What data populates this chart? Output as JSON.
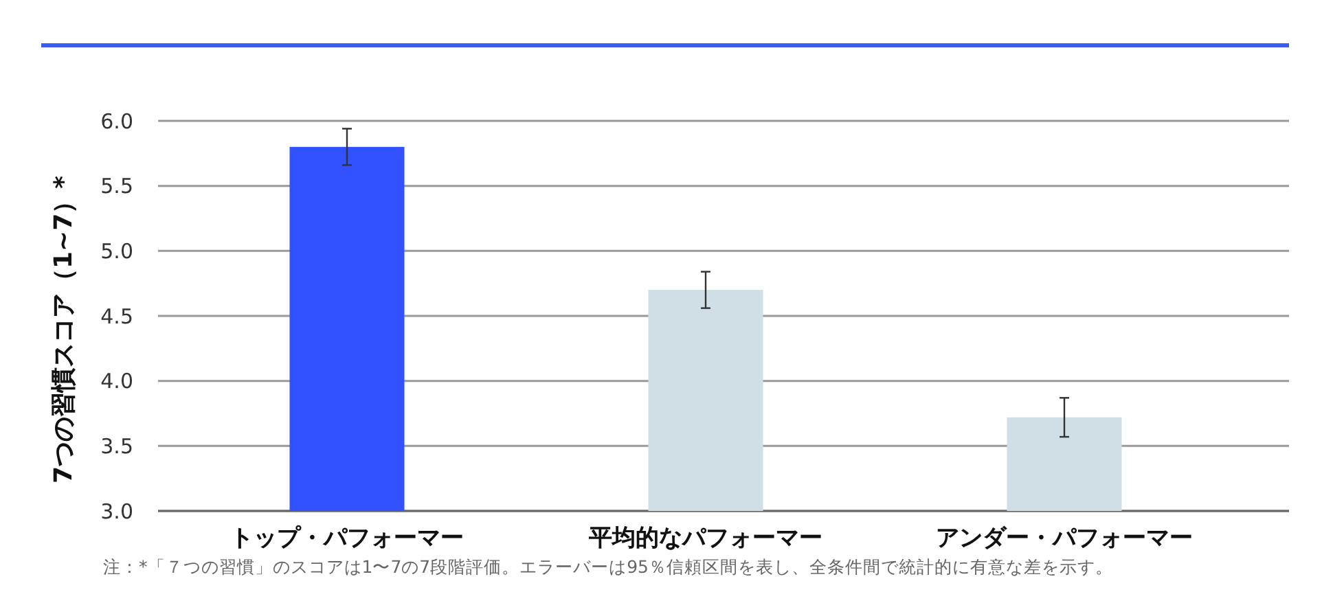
{
  "chart_data": {
    "type": "bar",
    "ylabel": "7つの習慣スコア（1~7）*",
    "categories": [
      "トップ・パフォーマー",
      "平均的なパフォーマー",
      "アンダー・パフォーマー"
    ],
    "values": [
      5.8,
      4.7,
      3.72
    ],
    "colors": [
      "#3352ff",
      "#d0dee6",
      "#d0dee6"
    ],
    "errors": [
      0.14,
      0.14,
      0.15
    ],
    "ylim": [
      3,
      6
    ],
    "yticks": [
      {
        "value": 3,
        "label": "3.0"
      },
      {
        "value": 3.5,
        "label": "3.5"
      },
      {
        "value": 4,
        "label": "4.0"
      },
      {
        "value": 4.5,
        "label": "4.5"
      },
      {
        "value": 5,
        "label": "5.0"
      },
      {
        "value": 5.5,
        "label": "5.5"
      },
      {
        "value": 6,
        "label": "6.0"
      }
    ],
    "grid": "y",
    "annotations": [
      "注：*「７つの習慣」のスコアは1〜7の7段階評価。エラーバーは95％信頼区間を表し、全条件間で統計的に有意な差を示す。"
    ]
  }
}
